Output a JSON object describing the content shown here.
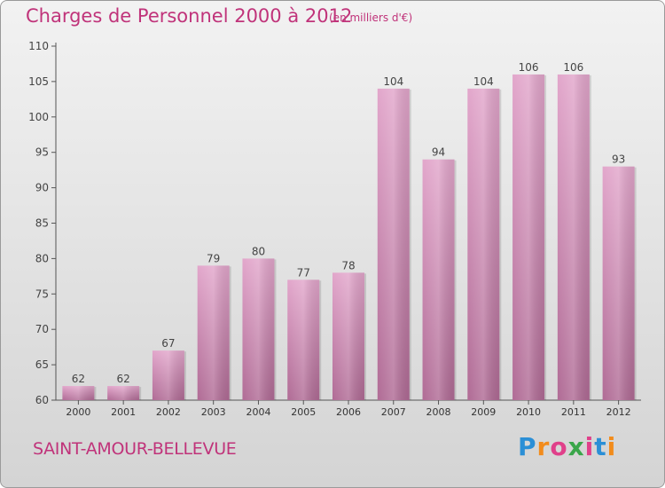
{
  "colors": {
    "accent": "#c0337a",
    "bar_top": "#e2a6cb",
    "bar_bottom": "#b06b95",
    "axis": "#555555"
  },
  "header": {
    "title": "Charges de Personnel 2000 à 2012",
    "subtitle": "(en milliers d'€)"
  },
  "footer": {
    "city": "SAINT-AMOUR-BELLEVUE",
    "logo_letters": [
      "P",
      "r",
      "o",
      "x",
      "i",
      "t",
      "i"
    ],
    "logo_colors": [
      "#2b8fd6",
      "#f28c1c",
      "#e0408a",
      "#3aa64a",
      "#e0408a",
      "#2b8fd6",
      "#f28c1c"
    ]
  },
  "chart_data": {
    "type": "bar",
    "categories": [
      "2000",
      "2001",
      "2002",
      "2003",
      "2004",
      "2005",
      "2006",
      "2007",
      "2008",
      "2009",
      "2010",
      "2011",
      "2012"
    ],
    "values": [
      62,
      62,
      67,
      79,
      80,
      77,
      78,
      104,
      94,
      104,
      106,
      106,
      93
    ],
    "ylim": [
      60,
      110
    ],
    "yticks": [
      60,
      65,
      70,
      75,
      80,
      85,
      90,
      95,
      100,
      105,
      110
    ],
    "grid": false,
    "data_labels": true
  }
}
